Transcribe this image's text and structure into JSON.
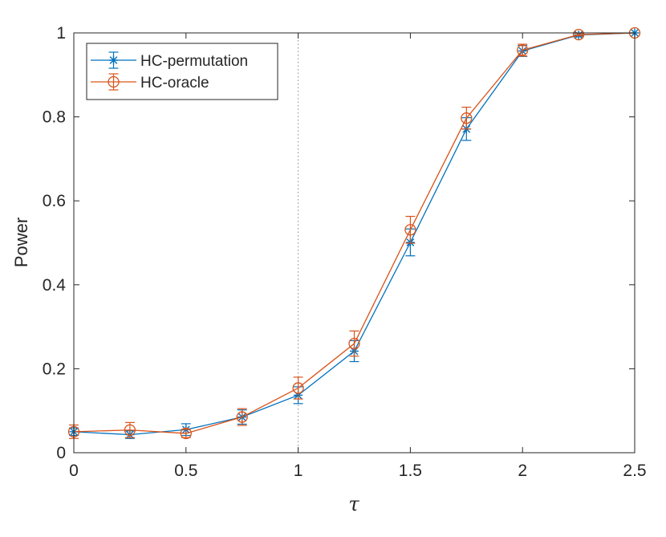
{
  "chart_data": {
    "type": "line",
    "xlabel": "τ",
    "ylabel": "Power",
    "xlim": [
      0,
      2.5
    ],
    "ylim": [
      0,
      1
    ],
    "xticks": [
      0,
      0.5,
      1,
      1.5,
      2,
      2.5
    ],
    "yticks": [
      0,
      0.2,
      0.4,
      0.6,
      0.8,
      1
    ],
    "xtick_labels": [
      "0",
      "0.5",
      "1",
      "1.5",
      "2",
      "2.5"
    ],
    "ytick_labels": [
      "0",
      "0.2",
      "0.4",
      "0.6",
      "0.8",
      "1"
    ],
    "grid": false,
    "legend_position": "top-left",
    "reference_line": {
      "x": 1,
      "style": "dotted",
      "color": "#888888"
    },
    "x": [
      0,
      0.25,
      0.5,
      0.75,
      1,
      1.25,
      1.5,
      1.75,
      2,
      2.25,
      2.5
    ],
    "series": [
      {
        "name": "HC-permutation",
        "color": "#0072BD",
        "marker": "asterisk",
        "values": [
          0.05,
          0.043,
          0.055,
          0.085,
          0.137,
          0.242,
          0.501,
          0.771,
          0.957,
          0.995,
          1.0
        ],
        "errors": [
          0.009,
          0.009,
          0.014,
          0.017,
          0.02,
          0.025,
          0.032,
          0.027,
          0.013,
          0.004,
          0.0
        ]
      },
      {
        "name": "HC-oracle",
        "color": "#D95319",
        "marker": "circle",
        "values": [
          0.05,
          0.054,
          0.046,
          0.085,
          0.154,
          0.26,
          0.531,
          0.797,
          0.959,
          0.996,
          1.0
        ],
        "errors": [
          0.016,
          0.018,
          0.01,
          0.02,
          0.026,
          0.03,
          0.032,
          0.026,
          0.014,
          0.003,
          0.0
        ]
      }
    ]
  }
}
